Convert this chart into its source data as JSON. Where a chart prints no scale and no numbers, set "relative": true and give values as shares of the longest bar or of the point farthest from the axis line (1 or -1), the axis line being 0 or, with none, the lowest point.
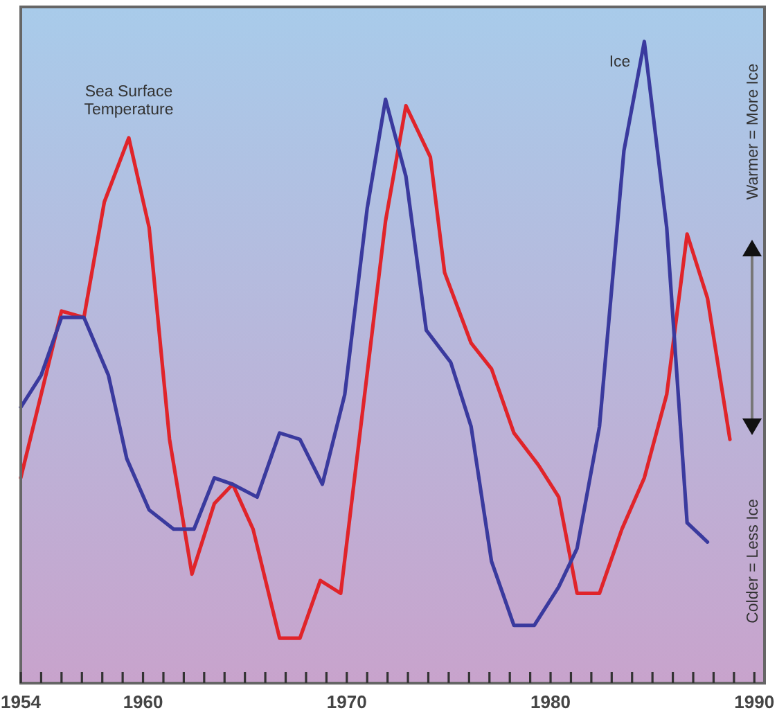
{
  "chart_data": {
    "type": "line",
    "relative": true,
    "xlim": [
      1954,
      1990.5
    ],
    "xticks": [
      1954,
      {
        "value": 1955,
        "label": null
      },
      {
        "value": 1956,
        "label": null
      },
      {
        "value": 1957,
        "label": null
      },
      {
        "value": 1958,
        "label": null
      },
      {
        "value": 1959,
        "label": null
      },
      1960,
      {
        "value": 1961,
        "label": null
      },
      {
        "value": 1962,
        "label": null
      },
      {
        "value": 1963,
        "label": null
      },
      {
        "value": 1964,
        "label": null
      },
      {
        "value": 1965,
        "label": null
      },
      {
        "value": 1966,
        "label": null
      },
      {
        "value": 1967,
        "label": null
      },
      {
        "value": 1968,
        "label": null
      },
      {
        "value": 1969,
        "label": null
      },
      1970,
      {
        "value": 1971,
        "label": null
      },
      {
        "value": 1972,
        "label": null
      },
      {
        "value": 1973,
        "label": null
      },
      {
        "value": 1974,
        "label": null
      },
      {
        "value": 1975,
        "label": null
      },
      {
        "value": 1976,
        "label": null
      },
      {
        "value": 1977,
        "label": null
      },
      {
        "value": 1978,
        "label": null
      },
      {
        "value": 1979,
        "label": null
      },
      1980,
      {
        "value": 1981,
        "label": null
      },
      {
        "value": 1982,
        "label": null
      },
      {
        "value": 1983,
        "label": null
      },
      {
        "value": 1984,
        "label": null
      },
      {
        "value": 1985,
        "label": null
      },
      {
        "value": 1986,
        "label": null
      },
      {
        "value": 1987,
        "label": null
      },
      {
        "value": 1988,
        "label": null
      },
      {
        "value": 1989,
        "label": null
      },
      1990
    ],
    "series": [
      {
        "name": "Sea Surface Temperature",
        "color": "#e0242a",
        "x": [
          1954.0,
          1956.0,
          1957.1,
          1958.1,
          1959.3,
          1960.3,
          1961.3,
          1962.4,
          1963.5,
          1964.4,
          1965.4,
          1966.7,
          1967.7,
          1968.7,
          1969.7,
          1971.9,
          1972.9,
          1974.1,
          1974.8,
          1976.1,
          1977.1,
          1978.2,
          1979.4,
          1980.4,
          1981.3,
          1982.4,
          1983.5,
          1984.6,
          1985.7,
          1986.7,
          1987.7,
          1988.8
        ],
        "values": [
          0.32,
          0.58,
          0.57,
          0.75,
          0.85,
          0.71,
          0.38,
          0.17,
          0.28,
          0.31,
          0.24,
          0.07,
          0.07,
          0.16,
          0.14,
          0.72,
          0.9,
          0.82,
          0.64,
          0.53,
          0.49,
          0.39,
          0.34,
          0.29,
          0.14,
          0.14,
          0.24,
          0.32,
          0.45,
          0.7,
          0.6,
          0.38
        ]
      },
      {
        "name": "Ice",
        "color": "#3a3a9e",
        "x": [
          1954.0,
          1955.0,
          1956.0,
          1957.1,
          1958.3,
          1959.2,
          1960.3,
          1961.5,
          1962.5,
          1963.5,
          1964.4,
          1965.6,
          1966.7,
          1967.7,
          1968.8,
          1969.9,
          1971.0,
          1971.9,
          1972.9,
          1973.9,
          1975.1,
          1976.1,
          1977.1,
          1978.2,
          1979.2,
          1980.4,
          1981.3,
          1982.4,
          1983.6,
          1984.6,
          1985.7,
          1986.7,
          1987.7
        ],
        "values": [
          0.43,
          0.48,
          0.57,
          0.57,
          0.48,
          0.35,
          0.27,
          0.24,
          0.24,
          0.32,
          0.31,
          0.29,
          0.39,
          0.38,
          0.31,
          0.45,
          0.74,
          0.91,
          0.79,
          0.55,
          0.5,
          0.4,
          0.19,
          0.09,
          0.09,
          0.15,
          0.21,
          0.4,
          0.83,
          1.0,
          0.71,
          0.25,
          0.22
        ]
      }
    ],
    "annotations": [
      "Warmer = More Ice",
      "Colder = Less Ice"
    ],
    "grid": false,
    "marker": "none",
    "line_style": "solid"
  }
}
